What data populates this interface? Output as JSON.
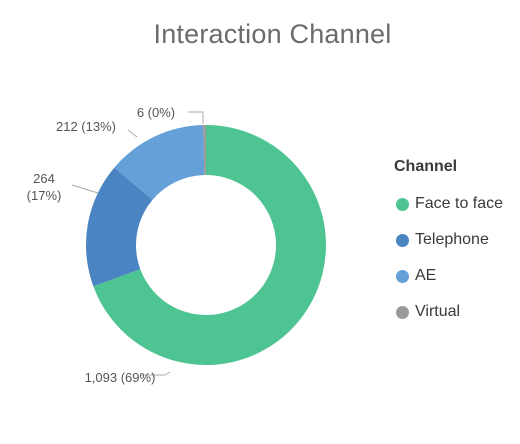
{
  "chart_data": {
    "type": "pie",
    "title": "Interaction Channel",
    "legend_title": "Channel",
    "legend_position": "right",
    "donut": true,
    "series": [
      {
        "name": "Face to face",
        "value": 1093,
        "percent": 69,
        "color": "#4fc493"
      },
      {
        "name": "Telephone",
        "value": 264,
        "percent": 17,
        "color": "#4a84c2"
      },
      {
        "name": "AE",
        "value": 212,
        "percent": 13,
        "color": "#66a0d8"
      },
      {
        "name": "Virtual",
        "value": 6,
        "percent": 0,
        "color": "#9a9a9a"
      }
    ],
    "data_labels": [
      "1,093 (69%)",
      "264\n(17%)",
      "212 (13%)",
      "6 (0%)"
    ]
  }
}
